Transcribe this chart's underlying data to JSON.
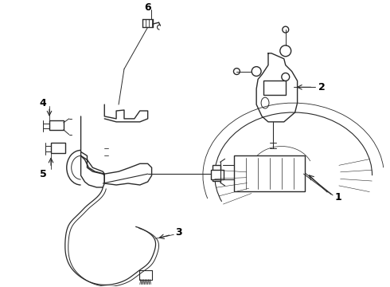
{
  "bg_color": "#ffffff",
  "line_color": "#2a2a2a",
  "label_color": "#000000",
  "lw": 1.0,
  "figsize": [
    4.9,
    3.6
  ],
  "dpi": 100
}
